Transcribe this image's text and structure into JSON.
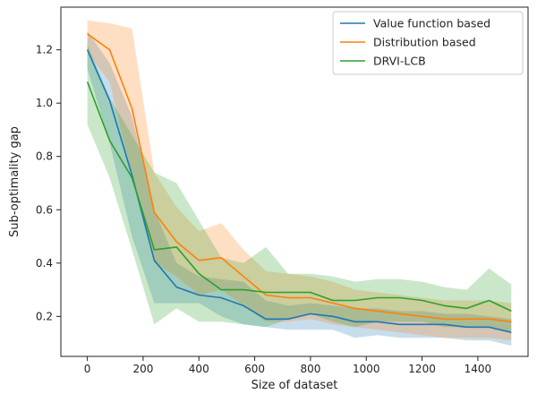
{
  "chart_data": {
    "type": "line",
    "xlabel": "Size of dataset",
    "ylabel": "Sub-optimality gap",
    "xlim": [
      -95,
      1580
    ],
    "ylim": [
      0.05,
      1.36
    ],
    "xticks": [
      0,
      200,
      400,
      600,
      800,
      1000,
      1200,
      1400
    ],
    "yticks": [
      0.2,
      0.4,
      0.6,
      0.8,
      1.0,
      1.2
    ],
    "ytick_labels": [
      "0.2",
      "0.4",
      "0.6",
      "0.8",
      "1.0",
      "1.2"
    ],
    "grid": false,
    "legend_position": "top-right",
    "series": [
      {
        "name": "Value function based",
        "color": "#1f77b4",
        "x": [
          0,
          80,
          160,
          240,
          320,
          400,
          480,
          560,
          640,
          720,
          800,
          880,
          960,
          1040,
          1120,
          1200,
          1280,
          1360,
          1440,
          1520
        ],
        "y": [
          1.2,
          1.01,
          0.73,
          0.41,
          0.31,
          0.28,
          0.27,
          0.24,
          0.19,
          0.19,
          0.21,
          0.2,
          0.18,
          0.18,
          0.17,
          0.17,
          0.17,
          0.16,
          0.16,
          0.14
        ],
        "lower": [
          1.13,
          0.85,
          0.5,
          0.25,
          0.25,
          0.25,
          0.2,
          0.17,
          0.16,
          0.15,
          0.15,
          0.15,
          0.12,
          0.13,
          0.12,
          0.12,
          0.12,
          0.11,
          0.11,
          0.09
        ],
        "upper": [
          1.27,
          1.15,
          0.95,
          0.6,
          0.4,
          0.35,
          0.34,
          0.33,
          0.26,
          0.24,
          0.25,
          0.24,
          0.23,
          0.23,
          0.22,
          0.22,
          0.21,
          0.21,
          0.2,
          0.19
        ]
      },
      {
        "name": "Distribution based",
        "color": "#ff7f0e",
        "x": [
          0,
          80,
          160,
          240,
          320,
          400,
          480,
          560,
          640,
          720,
          800,
          880,
          960,
          1040,
          1120,
          1200,
          1280,
          1360,
          1440,
          1520
        ],
        "y": [
          1.26,
          1.2,
          0.98,
          0.59,
          0.48,
          0.41,
          0.42,
          0.35,
          0.28,
          0.27,
          0.27,
          0.25,
          0.23,
          0.22,
          0.21,
          0.2,
          0.19,
          0.19,
          0.19,
          0.18
        ],
        "lower": [
          1.19,
          1.08,
          0.72,
          0.4,
          0.35,
          0.28,
          0.3,
          0.24,
          0.18,
          0.18,
          0.19,
          0.17,
          0.16,
          0.15,
          0.14,
          0.13,
          0.12,
          0.12,
          0.12,
          0.11
        ],
        "upper": [
          1.31,
          1.3,
          1.28,
          0.74,
          0.61,
          0.52,
          0.55,
          0.45,
          0.37,
          0.36,
          0.35,
          0.33,
          0.3,
          0.29,
          0.28,
          0.27,
          0.26,
          0.26,
          0.26,
          0.25
        ]
      },
      {
        "name": "DRVI-LCB",
        "color": "#2ca02c",
        "x": [
          0,
          80,
          160,
          240,
          320,
          400,
          480,
          560,
          640,
          720,
          800,
          880,
          960,
          1040,
          1120,
          1200,
          1280,
          1360,
          1440,
          1520
        ],
        "y": [
          1.08,
          0.86,
          0.72,
          0.45,
          0.46,
          0.36,
          0.3,
          0.3,
          0.29,
          0.29,
          0.29,
          0.26,
          0.26,
          0.27,
          0.27,
          0.26,
          0.24,
          0.23,
          0.26,
          0.22
        ],
        "lower": [
          0.92,
          0.72,
          0.45,
          0.17,
          0.23,
          0.18,
          0.18,
          0.17,
          0.16,
          0.19,
          0.21,
          0.18,
          0.16,
          0.18,
          0.18,
          0.18,
          0.16,
          0.16,
          0.16,
          0.14
        ],
        "upper": [
          1.22,
          1.02,
          0.88,
          0.74,
          0.7,
          0.56,
          0.42,
          0.4,
          0.46,
          0.36,
          0.36,
          0.35,
          0.33,
          0.34,
          0.34,
          0.33,
          0.31,
          0.3,
          0.38,
          0.32
        ]
      }
    ]
  }
}
